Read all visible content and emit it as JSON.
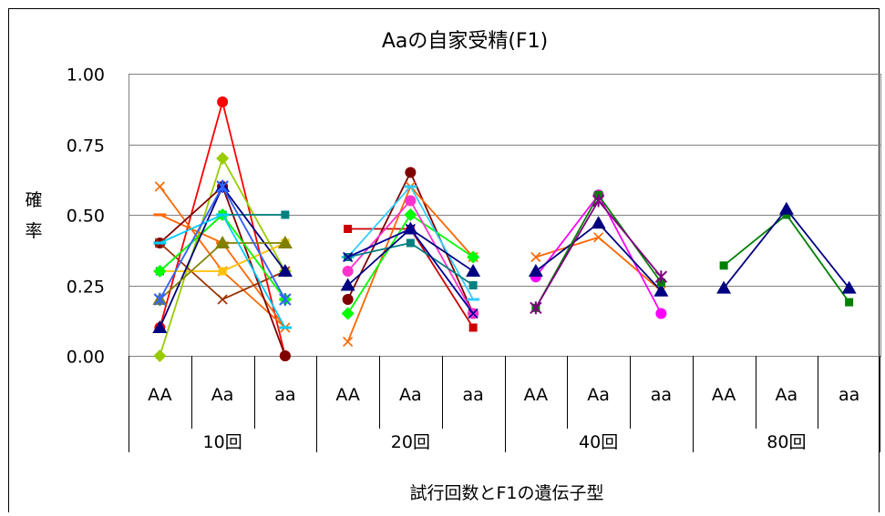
{
  "chart_data": {
    "type": "line",
    "title": "Aaの自家受精(F1)",
    "ylabel": "確率",
    "xlabel": "試行回数とF1の遺伝子型",
    "ylim": [
      0,
      1
    ],
    "y_ticks": [
      "0.00",
      "0.25",
      "0.50",
      "0.75",
      "1.00"
    ],
    "grid": true,
    "groups": [
      {
        "label": "10回",
        "categories": [
          "AA",
          "Aa",
          "aa"
        ]
      },
      {
        "label": "20回",
        "categories": [
          "AA",
          "Aa",
          "aa"
        ]
      },
      {
        "label": "40回",
        "categories": [
          "AA",
          "Aa",
          "aa"
        ]
      },
      {
        "label": "80回",
        "categories": [
          "AA",
          "Aa",
          "aa"
        ]
      }
    ],
    "series": [
      {
        "group": 0,
        "color": "#ff0000",
        "marker": "circle",
        "values": [
          0.1,
          0.9,
          0.0
        ]
      },
      {
        "group": 0,
        "color": "#99cc00",
        "marker": "diamond",
        "values": [
          0.0,
          0.7,
          0.3
        ]
      },
      {
        "group": 0,
        "color": "#9966cc",
        "marker": "star",
        "values": [
          0.2,
          0.6,
          0.2
        ]
      },
      {
        "group": 0,
        "color": "#ff6600",
        "marker": "x",
        "values": [
          0.6,
          0.3,
          0.1
        ]
      },
      {
        "group": 0,
        "color": "#ff6600",
        "marker": "dash",
        "values": [
          0.5,
          0.4,
          0.1
        ]
      },
      {
        "group": 0,
        "color": "#800000",
        "marker": "circle",
        "values": [
          0.4,
          0.6,
          0.0
        ]
      },
      {
        "group": 0,
        "color": "#993300",
        "marker": "x",
        "values": [
          0.4,
          0.2,
          0.3
        ]
      },
      {
        "group": 0,
        "color": "#ffc000",
        "marker": "square",
        "values": [
          0.3,
          0.3,
          0.4
        ]
      },
      {
        "group": 0,
        "color": "#ffcc66",
        "marker": "dash",
        "values": [
          0.3,
          0.5,
          0.2
        ]
      },
      {
        "group": 0,
        "color": "#008080",
        "marker": "square",
        "values": [
          0.3,
          0.5,
          0.5
        ]
      },
      {
        "group": 0,
        "color": "#00ff00",
        "marker": "diamond",
        "values": [
          0.3,
          0.5,
          0.2
        ]
      },
      {
        "group": 0,
        "color": "#000080",
        "marker": "triangle",
        "values": [
          0.1,
          0.6,
          0.3
        ]
      },
      {
        "group": 0,
        "color": "#808000",
        "marker": "triangle",
        "values": [
          0.2,
          0.4,
          0.4
        ]
      },
      {
        "group": 0,
        "color": "#00ccff",
        "marker": "dash",
        "values": [
          0.4,
          0.5,
          0.1
        ]
      },
      {
        "group": 0,
        "color": "#3366ff",
        "marker": "star",
        "values": [
          0.2,
          0.6,
          0.2
        ]
      },
      {
        "group": 1,
        "color": "#cc0000",
        "marker": "square",
        "values": [
          0.45,
          0.45,
          0.1
        ]
      },
      {
        "group": 1,
        "color": "#800000",
        "marker": "circle",
        "values": [
          0.2,
          0.65,
          0.15
        ]
      },
      {
        "group": 1,
        "color": "#ff6600",
        "marker": "x",
        "values": [
          0.05,
          0.6,
          0.35
        ]
      },
      {
        "group": 1,
        "color": "#00ff00",
        "marker": "diamond",
        "values": [
          0.15,
          0.5,
          0.35
        ]
      },
      {
        "group": 1,
        "color": "#ff33cc",
        "marker": "circle",
        "values": [
          0.3,
          0.55,
          0.15
        ]
      },
      {
        "group": 1,
        "color": "#33ccff",
        "marker": "dash",
        "values": [
          0.35,
          0.6,
          0.2
        ]
      },
      {
        "group": 1,
        "color": "#008080",
        "marker": "square",
        "values": [
          0.35,
          0.4,
          0.25
        ]
      },
      {
        "group": 1,
        "color": "#000080",
        "marker": "triangle",
        "values": [
          0.25,
          0.45,
          0.3
        ]
      },
      {
        "group": 1,
        "color": "#000099",
        "marker": "x",
        "values": [
          0.35,
          0.45,
          0.15
        ]
      },
      {
        "group": 2,
        "color": "#ff6600",
        "marker": "x",
        "values": [
          0.35,
          0.42,
          0.23
        ]
      },
      {
        "group": 2,
        "color": "#ff00ff",
        "marker": "circle",
        "values": [
          0.28,
          0.57,
          0.15
        ]
      },
      {
        "group": 2,
        "color": "#000080",
        "marker": "triangle",
        "values": [
          0.3,
          0.47,
          0.23
        ]
      },
      {
        "group": 2,
        "color": "#008000",
        "marker": "square",
        "values": [
          0.17,
          0.57,
          0.26
        ]
      },
      {
        "group": 2,
        "color": "#800080",
        "marker": "star",
        "values": [
          0.17,
          0.55,
          0.28
        ]
      },
      {
        "group": 3,
        "color": "#008000",
        "marker": "square",
        "values": [
          0.32,
          0.5,
          0.19
        ]
      },
      {
        "group": 3,
        "color": "#000080",
        "marker": "triangle",
        "values": [
          0.24,
          0.52,
          0.24
        ]
      }
    ]
  }
}
